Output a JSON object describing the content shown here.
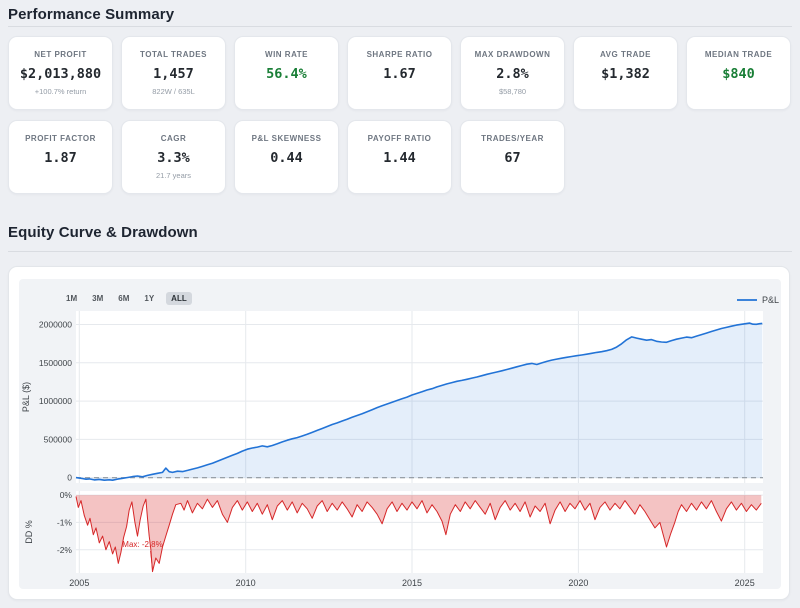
{
  "sections": {
    "performance": {
      "title": "Performance Summary"
    },
    "equity": {
      "title": "Equity Curve & Drawdown"
    }
  },
  "colors": {
    "green": "#1a7f37",
    "dark": "#24292f",
    "equity_line": "#2273d6",
    "equity_fill": "rgba(34,115,214,0.12)",
    "drawdown_line": "#d62728",
    "drawdown_fill": "rgba(214,39,40,0.28)",
    "grid": "#e6e9ed",
    "zero_dash": "#8f969e",
    "paper": "#f1f3f6",
    "tick_text": "#3f4449"
  },
  "stats_row1": [
    {
      "label": "NET PROFIT",
      "value": "$2,013,880",
      "sub": "+100.7% return"
    },
    {
      "label": "TOTAL TRADES",
      "value": "1,457",
      "sub": "822W / 635L"
    },
    {
      "label": "WIN RATE",
      "value": "56.4%",
      "sub": "",
      "value_color": "#1a7f37"
    },
    {
      "label": "SHARPE RATIO",
      "value": "1.67",
      "sub": ""
    },
    {
      "label": "MAX DRAWDOWN",
      "value": "2.8%",
      "sub": "$58,780"
    },
    {
      "label": "AVG TRADE",
      "value": "$1,382",
      "sub": ""
    },
    {
      "label": "MEDIAN TRADE",
      "value": "$840",
      "sub": "",
      "value_color": "#1a7f37"
    }
  ],
  "stats_row2": [
    {
      "label": "PROFIT FACTOR",
      "value": "1.87",
      "sub": ""
    },
    {
      "label": "CAGR",
      "value": "3.3%",
      "sub": "21.7 years"
    },
    {
      "label": "P&L SKEWNESS",
      "value": "0.44",
      "sub": ""
    },
    {
      "label": "PAYOFF RATIO",
      "value": "1.44",
      "sub": ""
    },
    {
      "label": "TRADES/YEAR",
      "value": "67",
      "sub": ""
    }
  ],
  "chart": {
    "range_buttons": [
      "1M",
      "3M",
      "6M",
      "1Y",
      "ALL"
    ],
    "active_range": "ALL",
    "legend_label": "P&L"
  },
  "chart_data": [
    {
      "type": "area",
      "name": "Equity Curve",
      "legend": "P&L",
      "ylabel": "P&L ($)",
      "xlabel": "",
      "x_ticks": [
        2005,
        2010,
        2015,
        2020,
        2025
      ],
      "y_ticks": [
        0,
        500000,
        1000000,
        1500000,
        2000000
      ],
      "xlim": [
        2004.9,
        2025.55
      ],
      "ylim": [
        -69000,
        2176000
      ],
      "grid": true,
      "zero_line": "dashed",
      "points": [
        [
          2004.9,
          2000
        ],
        [
          2005.0,
          -5000
        ],
        [
          2005.1,
          -12000
        ],
        [
          2005.2,
          -20000
        ],
        [
          2005.3,
          -15000
        ],
        [
          2005.45,
          -28000
        ],
        [
          2005.6,
          -22000
        ],
        [
          2005.75,
          -33000
        ],
        [
          2005.9,
          -27000
        ],
        [
          2006.0,
          -32000
        ],
        [
          2006.15,
          -18000
        ],
        [
          2006.3,
          -8000
        ],
        [
          2006.45,
          3000
        ],
        [
          2006.6,
          15000
        ],
        [
          2006.75,
          22000
        ],
        [
          2006.9,
          12000
        ],
        [
          2007.05,
          30000
        ],
        [
          2007.2,
          45000
        ],
        [
          2007.35,
          58000
        ],
        [
          2007.5,
          70000
        ],
        [
          2007.6,
          125000
        ],
        [
          2007.7,
          78000
        ],
        [
          2007.8,
          70000
        ],
        [
          2007.95,
          85000
        ],
        [
          2008.1,
          80000
        ],
        [
          2008.25,
          95000
        ],
        [
          2008.4,
          112000
        ],
        [
          2008.55,
          128000
        ],
        [
          2008.7,
          148000
        ],
        [
          2008.85,
          168000
        ],
        [
          2009.0,
          190000
        ],
        [
          2009.15,
          215000
        ],
        [
          2009.3,
          242000
        ],
        [
          2009.45,
          268000
        ],
        [
          2009.6,
          292000
        ],
        [
          2009.75,
          318000
        ],
        [
          2009.9,
          348000
        ],
        [
          2010.05,
          372000
        ],
        [
          2010.2,
          388000
        ],
        [
          2010.35,
          400000
        ],
        [
          2010.5,
          415000
        ],
        [
          2010.65,
          404000
        ],
        [
          2010.8,
          420000
        ],
        [
          2010.95,
          442000
        ],
        [
          2011.1,
          468000
        ],
        [
          2011.25,
          490000
        ],
        [
          2011.4,
          508000
        ],
        [
          2011.55,
          524000
        ],
        [
          2011.7,
          545000
        ],
        [
          2011.85,
          566000
        ],
        [
          2012.0,
          592000
        ],
        [
          2012.15,
          618000
        ],
        [
          2012.3,
          642000
        ],
        [
          2012.45,
          668000
        ],
        [
          2012.6,
          694000
        ],
        [
          2012.75,
          716000
        ],
        [
          2012.9,
          740000
        ],
        [
          2013.05,
          764000
        ],
        [
          2013.2,
          790000
        ],
        [
          2013.35,
          812000
        ],
        [
          2013.5,
          835000
        ],
        [
          2013.65,
          862000
        ],
        [
          2013.8,
          888000
        ],
        [
          2013.95,
          915000
        ],
        [
          2014.1,
          940000
        ],
        [
          2014.25,
          962000
        ],
        [
          2014.4,
          985000
        ],
        [
          2014.55,
          1008000
        ],
        [
          2014.7,
          1030000
        ],
        [
          2014.85,
          1052000
        ],
        [
          2015.0,
          1080000
        ],
        [
          2015.15,
          1100000
        ],
        [
          2015.3,
          1122000
        ],
        [
          2015.45,
          1145000
        ],
        [
          2015.6,
          1162000
        ],
        [
          2015.75,
          1185000
        ],
        [
          2015.9,
          1205000
        ],
        [
          2016.05,
          1225000
        ],
        [
          2016.2,
          1242000
        ],
        [
          2016.35,
          1258000
        ],
        [
          2016.5,
          1270000
        ],
        [
          2016.65,
          1285000
        ],
        [
          2016.8,
          1300000
        ],
        [
          2016.95,
          1315000
        ],
        [
          2017.1,
          1332000
        ],
        [
          2017.25,
          1350000
        ],
        [
          2017.4,
          1365000
        ],
        [
          2017.55,
          1380000
        ],
        [
          2017.7,
          1395000
        ],
        [
          2017.85,
          1412000
        ],
        [
          2018.0,
          1430000
        ],
        [
          2018.15,
          1448000
        ],
        [
          2018.3,
          1465000
        ],
        [
          2018.45,
          1482000
        ],
        [
          2018.6,
          1492000
        ],
        [
          2018.75,
          1478000
        ],
        [
          2018.9,
          1498000
        ],
        [
          2019.05,
          1518000
        ],
        [
          2019.2,
          1535000
        ],
        [
          2019.35,
          1548000
        ],
        [
          2019.5,
          1560000
        ],
        [
          2019.65,
          1572000
        ],
        [
          2019.8,
          1582000
        ],
        [
          2019.95,
          1592000
        ],
        [
          2020.1,
          1602000
        ],
        [
          2020.25,
          1612000
        ],
        [
          2020.4,
          1624000
        ],
        [
          2020.55,
          1635000
        ],
        [
          2020.7,
          1645000
        ],
        [
          2020.85,
          1658000
        ],
        [
          2021.0,
          1675000
        ],
        [
          2021.15,
          1705000
        ],
        [
          2021.3,
          1748000
        ],
        [
          2021.45,
          1800000
        ],
        [
          2021.6,
          1838000
        ],
        [
          2021.75,
          1822000
        ],
        [
          2021.9,
          1808000
        ],
        [
          2022.05,
          1795000
        ],
        [
          2022.2,
          1803000
        ],
        [
          2022.35,
          1780000
        ],
        [
          2022.5,
          1772000
        ],
        [
          2022.65,
          1768000
        ],
        [
          2022.8,
          1790000
        ],
        [
          2022.95,
          1808000
        ],
        [
          2023.1,
          1822000
        ],
        [
          2023.25,
          1835000
        ],
        [
          2023.4,
          1828000
        ],
        [
          2023.55,
          1848000
        ],
        [
          2023.7,
          1868000
        ],
        [
          2023.85,
          1888000
        ],
        [
          2024.0,
          1908000
        ],
        [
          2024.15,
          1928000
        ],
        [
          2024.3,
          1948000
        ],
        [
          2024.45,
          1962000
        ],
        [
          2024.6,
          1978000
        ],
        [
          2024.75,
          1992000
        ],
        [
          2024.9,
          2002000
        ],
        [
          2025.05,
          2012000
        ],
        [
          2025.15,
          2018000
        ],
        [
          2025.25,
          2004000
        ],
        [
          2025.35,
          2002000
        ],
        [
          2025.45,
          2010000
        ],
        [
          2025.53,
          2013880
        ]
      ]
    },
    {
      "type": "area",
      "name": "Drawdown",
      "ylabel": "DD %",
      "xlabel": "",
      "x_ticks": [
        2005,
        2010,
        2015,
        2020,
        2025
      ],
      "y_ticks": [
        0,
        -1,
        -2
      ],
      "xlim": [
        2004.9,
        2025.55
      ],
      "ylim": [
        0.15,
        -2.85
      ],
      "grid": true,
      "annotation": {
        "text": "Max: -2.8%",
        "x": 2007.2,
        "y": -2.8
      },
      "points": [
        [
          2004.9,
          -0.05
        ],
        [
          2004.97,
          -0.45
        ],
        [
          2005.05,
          -0.2
        ],
        [
          2005.15,
          -0.75
        ],
        [
          2005.25,
          -1.1
        ],
        [
          2005.32,
          -0.85
        ],
        [
          2005.42,
          -1.45
        ],
        [
          2005.5,
          -1.2
        ],
        [
          2005.6,
          -1.75
        ],
        [
          2005.7,
          -1.5
        ],
        [
          2005.8,
          -2.0
        ],
        [
          2005.9,
          -1.7
        ],
        [
          2006.0,
          -2.15
        ],
        [
          2006.08,
          -1.9
        ],
        [
          2006.17,
          -2.5
        ],
        [
          2006.25,
          -2.1
        ],
        [
          2006.33,
          -1.55
        ],
        [
          2006.42,
          -1.15
        ],
        [
          2006.5,
          -0.55
        ],
        [
          2006.58,
          -0.25
        ],
        [
          2006.67,
          -1.0
        ],
        [
          2006.75,
          -1.5
        ],
        [
          2006.83,
          -0.9
        ],
        [
          2006.92,
          -0.4
        ],
        [
          2007.0,
          -0.15
        ],
        [
          2007.05,
          -0.85
        ],
        [
          2007.1,
          -1.5
        ],
        [
          2007.15,
          -2.0
        ],
        [
          2007.2,
          -2.8
        ],
        [
          2007.3,
          -2.3
        ],
        [
          2007.4,
          -2.5
        ],
        [
          2007.5,
          -1.9
        ],
        [
          2007.6,
          -1.5
        ],
        [
          2007.7,
          -1.1
        ],
        [
          2007.8,
          -0.7
        ],
        [
          2007.9,
          -0.35
        ],
        [
          2008.05,
          -0.3
        ],
        [
          2008.15,
          -0.55
        ],
        [
          2008.25,
          -0.2
        ],
        [
          2008.4,
          -0.65
        ],
        [
          2008.55,
          -0.3
        ],
        [
          2008.7,
          -0.5
        ],
        [
          2008.85,
          -0.15
        ],
        [
          2009.0,
          -0.45
        ],
        [
          2009.15,
          -0.2
        ],
        [
          2009.3,
          -0.7
        ],
        [
          2009.45,
          -1.0
        ],
        [
          2009.6,
          -0.45
        ],
        [
          2009.75,
          -0.2
        ],
        [
          2009.9,
          -0.55
        ],
        [
          2010.05,
          -0.25
        ],
        [
          2010.2,
          -0.6
        ],
        [
          2010.35,
          -0.3
        ],
        [
          2010.5,
          -0.7
        ],
        [
          2010.65,
          -0.35
        ],
        [
          2010.8,
          -0.9
        ],
        [
          2010.95,
          -0.4
        ],
        [
          2011.1,
          -0.2
        ],
        [
          2011.25,
          -0.55
        ],
        [
          2011.4,
          -0.25
        ],
        [
          2011.55,
          -0.65
        ],
        [
          2011.7,
          -0.3
        ],
        [
          2011.85,
          -0.5
        ],
        [
          2012.0,
          -0.85
        ],
        [
          2012.15,
          -0.4
        ],
        [
          2012.3,
          -0.2
        ],
        [
          2012.45,
          -0.6
        ],
        [
          2012.6,
          -0.3
        ],
        [
          2012.75,
          -0.55
        ],
        [
          2012.9,
          -0.25
        ],
        [
          2013.05,
          -0.5
        ],
        [
          2013.2,
          -0.8
        ],
        [
          2013.35,
          -0.35
        ],
        [
          2013.5,
          -0.6
        ],
        [
          2013.65,
          -0.25
        ],
        [
          2013.8,
          -0.45
        ],
        [
          2013.95,
          -0.7
        ],
        [
          2014.1,
          -1.05
        ],
        [
          2014.25,
          -0.5
        ],
        [
          2014.4,
          -0.25
        ],
        [
          2014.55,
          -0.6
        ],
        [
          2014.7,
          -0.3
        ],
        [
          2014.85,
          -0.55
        ],
        [
          2015.0,
          -0.25
        ],
        [
          2015.15,
          -0.5
        ],
        [
          2015.3,
          -0.2
        ],
        [
          2015.45,
          -0.65
        ],
        [
          2015.6,
          -0.35
        ],
        [
          2015.75,
          -0.6
        ],
        [
          2015.9,
          -0.95
        ],
        [
          2016.02,
          -1.45
        ],
        [
          2016.15,
          -0.7
        ],
        [
          2016.3,
          -0.35
        ],
        [
          2016.45,
          -0.6
        ],
        [
          2016.6,
          -0.25
        ],
        [
          2016.75,
          -0.5
        ],
        [
          2016.9,
          -0.2
        ],
        [
          2017.05,
          -0.45
        ],
        [
          2017.2,
          -0.7
        ],
        [
          2017.35,
          -0.3
        ],
        [
          2017.5,
          -0.9
        ],
        [
          2017.65,
          -0.45
        ],
        [
          2017.8,
          -0.2
        ],
        [
          2017.95,
          -0.55
        ],
        [
          2018.1,
          -0.3
        ],
        [
          2018.25,
          -0.6
        ],
        [
          2018.4,
          -0.25
        ],
        [
          2018.55,
          -0.8
        ],
        [
          2018.7,
          -0.4
        ],
        [
          2018.85,
          -0.6
        ],
        [
          2019.0,
          -0.3
        ],
        [
          2019.15,
          -1.05
        ],
        [
          2019.3,
          -0.55
        ],
        [
          2019.45,
          -0.25
        ],
        [
          2019.6,
          -0.6
        ],
        [
          2019.75,
          -0.3
        ],
        [
          2019.9,
          -0.5
        ],
        [
          2020.05,
          -0.2
        ],
        [
          2020.2,
          -0.55
        ],
        [
          2020.35,
          -0.3
        ],
        [
          2020.5,
          -0.9
        ],
        [
          2020.65,
          -0.45
        ],
        [
          2020.8,
          -0.25
        ],
        [
          2020.95,
          -0.55
        ],
        [
          2021.1,
          -0.3
        ],
        [
          2021.25,
          -0.5
        ],
        [
          2021.4,
          -0.2
        ],
        [
          2021.55,
          -0.45
        ],
        [
          2021.7,
          -0.7
        ],
        [
          2021.85,
          -0.35
        ],
        [
          2022.0,
          -0.6
        ],
        [
          2022.15,
          -0.9
        ],
        [
          2022.3,
          -1.2
        ],
        [
          2022.45,
          -1.0
        ],
        [
          2022.55,
          -1.45
        ],
        [
          2022.65,
          -1.9
        ],
        [
          2022.78,
          -1.4
        ],
        [
          2022.9,
          -1.0
        ],
        [
          2023.0,
          -0.6
        ],
        [
          2023.1,
          -0.35
        ],
        [
          2023.25,
          -0.6
        ],
        [
          2023.4,
          -0.3
        ],
        [
          2023.55,
          -0.55
        ],
        [
          2023.7,
          -0.25
        ],
        [
          2023.85,
          -0.5
        ],
        [
          2024.0,
          -0.2
        ],
        [
          2024.15,
          -0.6
        ],
        [
          2024.3,
          -0.95
        ],
        [
          2024.45,
          -0.5
        ],
        [
          2024.6,
          -0.25
        ],
        [
          2024.75,
          -0.55
        ],
        [
          2024.9,
          -0.3
        ],
        [
          2025.05,
          -0.6
        ],
        [
          2025.2,
          -0.35
        ],
        [
          2025.35,
          -0.55
        ],
        [
          2025.5,
          -0.3
        ]
      ]
    }
  ]
}
